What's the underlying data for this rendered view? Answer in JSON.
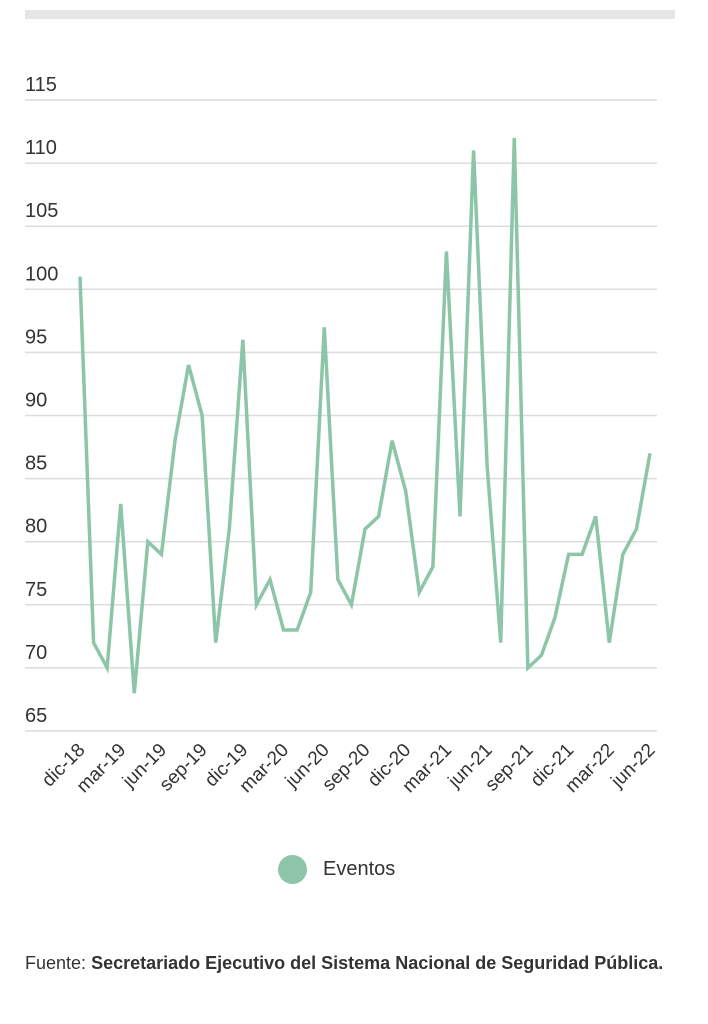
{
  "chart_data": {
    "type": "line",
    "title": "",
    "xlabel": "",
    "ylabel": "",
    "ylim": [
      65,
      115
    ],
    "yticks": [
      65,
      70,
      75,
      80,
      85,
      90,
      95,
      100,
      105,
      110,
      115
    ],
    "grid": true,
    "x": [
      "dic-18",
      "ene-19",
      "feb-19",
      "mar-19",
      "abr-19",
      "may-19",
      "jun-19",
      "jul-19",
      "ago-19",
      "sep-19",
      "oct-19",
      "nov-19",
      "dic-19",
      "ene-20",
      "feb-20",
      "mar-20",
      "abr-20",
      "may-20",
      "jun-20",
      "jul-20",
      "ago-20",
      "sep-20",
      "oct-20",
      "nov-20",
      "dic-20",
      "ene-21",
      "feb-21",
      "mar-21",
      "abr-21",
      "may-21",
      "jun-21",
      "jul-21",
      "ago-21",
      "sep-21",
      "oct-21",
      "nov-21",
      "dic-21",
      "ene-22",
      "feb-22",
      "mar-22",
      "abr-22",
      "may-22",
      "jun-22"
    ],
    "xtick_labels": [
      "dic-18",
      "mar-19",
      "jun-19",
      "sep-19",
      "dic-19",
      "mar-20",
      "jun-20",
      "sep-20",
      "dic-20",
      "mar-21",
      "jun-21",
      "sep-21",
      "dic-21",
      "mar-22",
      "jun-22"
    ],
    "series": [
      {
        "name": "Eventos",
        "color": "#8cc5a7",
        "values": [
          101,
          72,
          70,
          83,
          68,
          80,
          79,
          88,
          94,
          90,
          72,
          81,
          96,
          75,
          77,
          73,
          73,
          76,
          97,
          77,
          75,
          81,
          82,
          88,
          84,
          76,
          78,
          103,
          82,
          111,
          86,
          72,
          112,
          70,
          71,
          74,
          79,
          79,
          82,
          72,
          79,
          81,
          87
        ]
      }
    ],
    "legend": {
      "position": "bottom",
      "entries": [
        "Eventos"
      ]
    }
  },
  "source": {
    "label": "Fuente:",
    "text": "Secretariado Ejecutivo del Sistema Nacional de Seguridad Pública."
  }
}
